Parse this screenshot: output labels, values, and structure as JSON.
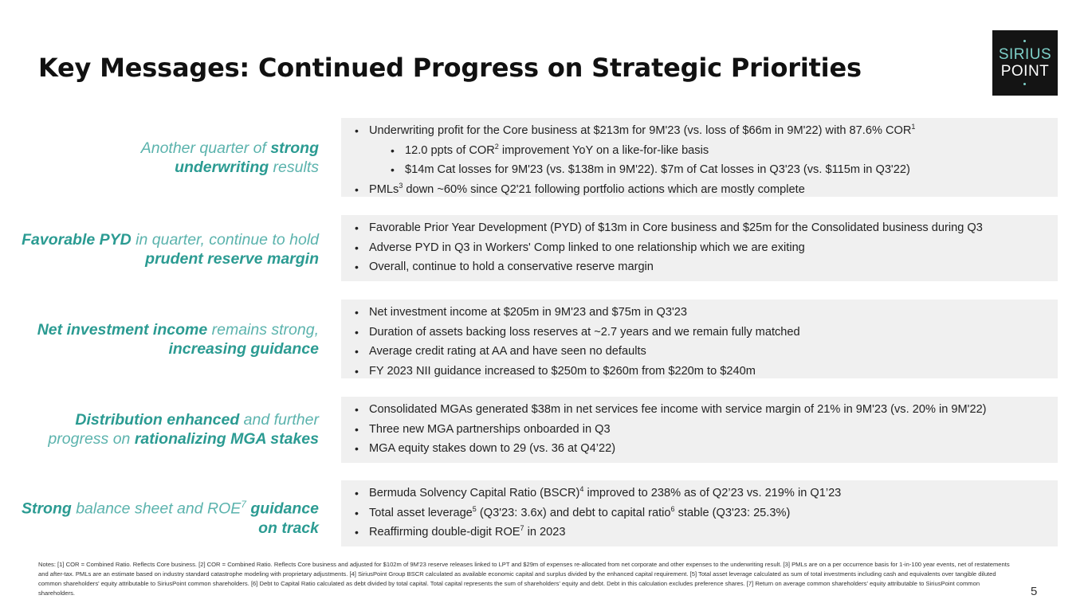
{
  "title": "Key Messages: Continued Progress on Strategic Priorities",
  "logo": {
    "line1": "SIRIUS",
    "line2": "POINT"
  },
  "sections": [
    {
      "label": [
        "Another quarter of ",
        "strong",
        " underwriting",
        " results"
      ],
      "bullets": [
        {
          "text": "Underwriting profit for the Core business at $213m for 9M'23 (vs. loss of $66m in 9M'22) with 87.6% COR",
          "sup": "1"
        },
        {
          "text": "12.0 ppts of COR",
          "sup": "2",
          "after": " improvement YoY on a like-for-like basis"
        },
        {
          "text": "$14m Cat losses for 9M'23 (vs. $138m in 9M'22). $7m of Cat losses in Q3'23 (vs. $115m in Q3'22)"
        },
        {
          "text": "PMLs",
          "sup": "3",
          "after": " down ~60% since Q2'21 following portfolio actions which are mostly complete"
        }
      ]
    },
    {
      "label": [
        "Favorable PYD",
        " in quarter, continue to hold ",
        "prudent reserve margin"
      ],
      "bullets": [
        {
          "text": "Favorable Prior Year Development (PYD) of $13m in Core business and $25m for the Consolidated business during Q3"
        },
        {
          "text": "Adverse PYD in Q3 in Workers' Comp linked to one relationship which we are exiting"
        },
        {
          "text": "Overall, continue to hold a conservative reserve margin"
        }
      ]
    },
    {
      "label": [
        "Net investment income",
        " remains strong, ",
        "increasing guidance"
      ],
      "bullets": [
        {
          "text": "Net investment income at $205m in 9M'23 and $75m in Q3'23"
        },
        {
          "text": "Duration of assets backing loss reserves at ~2.7 years and we remain fully matched"
        },
        {
          "text": "Average credit rating at AA and have seen no defaults"
        },
        {
          "text": "FY 2023 NII guidance increased to $250m to $260m from $220m to $240m"
        }
      ]
    },
    {
      "label": [
        "Distribution enhanced",
        " and further progress on ",
        "rationalizing MGA stakes"
      ],
      "bullets": [
        {
          "text": "Consolidated MGAs generated $38m in net services fee income with service margin of 21% in 9M'23 (vs. 20% in 9M'22)"
        },
        {
          "text": "Three new MGA partnerships onboarded in Q3"
        },
        {
          "text": "MGA equity stakes down to 29 (vs. 36 at Q4’22)"
        }
      ]
    },
    {
      "label": [
        "Strong",
        " balance sheet and ROE",
        "7",
        " guidance on track"
      ],
      "bullets": [
        {
          "text": "Bermuda Solvency Capital Ratio (BSCR)",
          "sup": "4",
          "after": " improved to 238% as of Q2’23 vs. 219% in Q1’23"
        },
        {
          "text": "Total asset leverage",
          "sup": "5",
          "after": " (Q3'23: 3.6x) and debt to capital ratio",
          "sup2": "6",
          "after2": " stable (Q3'23: 25.3%)"
        },
        {
          "text": "Reaffirming double-digit ROE",
          "sup": "7",
          "after": " in 2023"
        }
      ]
    }
  ],
  "notes": "Notes: [1] COR = Combined Ratio. Reflects Core business. [2] COR = Combined Ratio. Reflects Core business and adjusted for $102m of 9M'23 reserve releases linked to LPT and $29m of expenses re-allocated from net corporate and other expenses to the underwriting result. [3] PMLs are on a per occurrence basis for 1-in-100 year events, net of restatements and after-tax. PMLs are an estimate based on industry standard catastrophe modeling with proprietary adjustments. [4] SiriusPoint Group BSCR calculated as available economic capital and surplus divided by the enhanced capital requirement. [5] Total asset leverage calculated as sum of total investments including cash and equivalents over tangible diluted common shareholders' equity attributable to SiriusPoint common shareholders. [6] Debt to Capital Ratio calculated as debt divided by total capital. Total capital represents the sum of shareholders' equity and debt. Debt in this calculation excludes preference shares. [7] Return on average common shareholders' equity attributable to SiriusPoint common shareholders.",
  "page_number": "5"
}
